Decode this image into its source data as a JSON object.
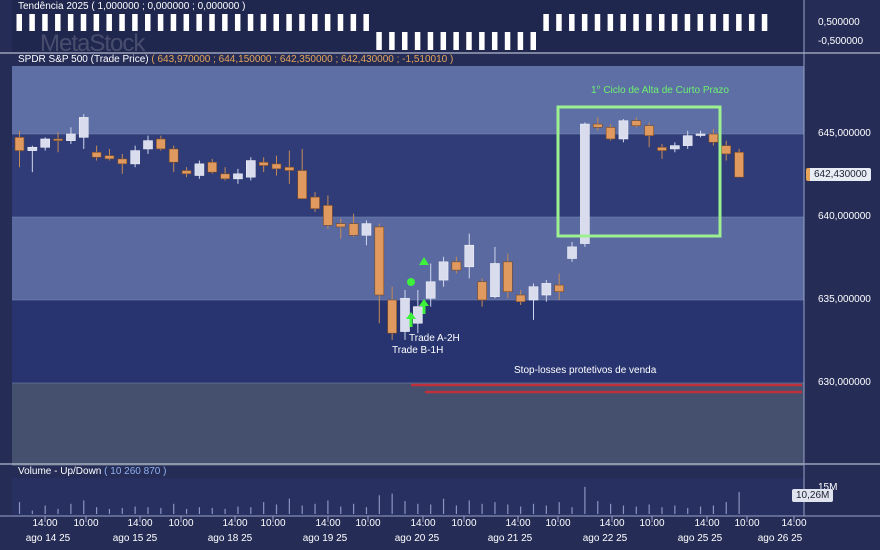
{
  "trend_panel": {
    "title": "Tendência 2025",
    "values": "( 1,000000 ; 0,000000 ; 0,000000 )",
    "axis_ticks": [
      "0,500000",
      "-0,500000"
    ],
    "bars": [
      1,
      1,
      1,
      1,
      1,
      1,
      1,
      1,
      1,
      1,
      1,
      1,
      1,
      1,
      1,
      1,
      1,
      1,
      1,
      1,
      1,
      1,
      1,
      1,
      1,
      1,
      1,
      1,
      -1,
      -1,
      -1,
      -1,
      -1,
      -1,
      -1,
      -1,
      -1,
      -1,
      -1,
      -1,
      -1,
      1,
      1,
      1,
      1,
      1,
      1,
      1,
      1,
      1,
      1,
      1,
      1,
      1,
      1,
      1,
      1,
      1,
      1
    ],
    "watermark": "MetaStock"
  },
  "price_panel": {
    "title": "SPDR S&P 500 (Trade Price)",
    "values": "( 643,970000 ; 644,150000 ; 642,350000 ; 642,430000 ; -1,510010 )",
    "current_price_label": "642,430000",
    "axis_ticks": [
      "645,000000",
      "640,000000",
      "635,000000",
      "630,000000"
    ]
  },
  "annotations": {
    "cycle": "1° Ciclo de Alta de Curto Prazo",
    "trade_a": "Trade A-2H",
    "trade_b": "Trade B-1H",
    "stop_losses": "Stop-losses protetivos de venda"
  },
  "volume_panel": {
    "title": "Volume - Up/Down",
    "count": "( 10 260 870 )",
    "axis_tick": "15M",
    "current_label": "10,26M"
  },
  "x_axis": {
    "time_labels": [
      "14:00",
      "10:00",
      "14:00",
      "10:00",
      "14:00",
      "10:00",
      "14:00",
      "10:00",
      "14:00",
      "10:00",
      "14:00",
      "10:00",
      "14:00",
      "10:00",
      "14:00",
      "10:00",
      "14:00"
    ],
    "date_labels": [
      "ago 14 25",
      "ago 15 25",
      "ago 18 25",
      "ago 19 25",
      "ago 20 25",
      "ago 21 25",
      "ago 22 25",
      "ago 25 25",
      "ago 26 25"
    ]
  },
  "colors": {
    "up": "#d8dcec",
    "down": "#e09a60",
    "cycle_box": "#9df08f",
    "stop_line": "#c0303a",
    "arrow": "#3cf03c"
  },
  "chart_data": {
    "type": "candlestick",
    "title": "SPDR S&P 500 (Trade Price)",
    "ylim": [
      625.0,
      649.5
    ],
    "ticks": [
      630,
      635,
      640,
      645
    ],
    "candles": [
      {
        "o": 644.8,
        "h": 645.2,
        "l": 643.0,
        "c": 644.0
      },
      {
        "o": 644.0,
        "h": 644.3,
        "l": 642.7,
        "c": 644.2
      },
      {
        "o": 644.2,
        "h": 644.8,
        "l": 644.0,
        "c": 644.7
      },
      {
        "o": 644.7,
        "h": 645.1,
        "l": 643.9,
        "c": 644.6
      },
      {
        "o": 644.6,
        "h": 645.4,
        "l": 644.4,
        "c": 645.0
      },
      {
        "o": 644.8,
        "h": 646.2,
        "l": 644.1,
        "c": 646.0
      },
      {
        "o": 643.9,
        "h": 644.3,
        "l": 643.4,
        "c": 643.6
      },
      {
        "o": 643.7,
        "h": 644.1,
        "l": 643.4,
        "c": 643.5
      },
      {
        "o": 643.5,
        "h": 643.8,
        "l": 642.6,
        "c": 643.2
      },
      {
        "o": 643.2,
        "h": 644.3,
        "l": 643.0,
        "c": 644.0
      },
      {
        "o": 644.1,
        "h": 644.9,
        "l": 643.8,
        "c": 644.6
      },
      {
        "o": 644.7,
        "h": 644.9,
        "l": 644.0,
        "c": 644.1
      },
      {
        "o": 644.1,
        "h": 644.3,
        "l": 642.7,
        "c": 643.3
      },
      {
        "o": 642.8,
        "h": 643.0,
        "l": 642.4,
        "c": 642.6
      },
      {
        "o": 642.5,
        "h": 643.4,
        "l": 642.3,
        "c": 643.2
      },
      {
        "o": 643.3,
        "h": 643.5,
        "l": 642.6,
        "c": 642.7
      },
      {
        "o": 642.6,
        "h": 643.0,
        "l": 642.2,
        "c": 642.3
      },
      {
        "o": 642.3,
        "h": 642.9,
        "l": 642.0,
        "c": 642.6
      },
      {
        "o": 642.4,
        "h": 643.6,
        "l": 642.2,
        "c": 643.4
      },
      {
        "o": 643.3,
        "h": 643.6,
        "l": 642.7,
        "c": 643.1
      },
      {
        "o": 643.2,
        "h": 643.7,
        "l": 642.5,
        "c": 642.9
      },
      {
        "o": 643.0,
        "h": 644.0,
        "l": 642.0,
        "c": 642.8
      },
      {
        "o": 642.8,
        "h": 644.1,
        "l": 641.2,
        "c": 641.1
      },
      {
        "o": 641.2,
        "h": 641.5,
        "l": 640.3,
        "c": 640.5
      },
      {
        "o": 640.7,
        "h": 641.3,
        "l": 639.3,
        "c": 639.5
      },
      {
        "o": 639.6,
        "h": 639.9,
        "l": 638.7,
        "c": 639.4
      },
      {
        "o": 639.6,
        "h": 640.2,
        "l": 638.8,
        "c": 638.9
      },
      {
        "o": 638.9,
        "h": 639.8,
        "l": 638.3,
        "c": 639.6
      },
      {
        "o": 639.4,
        "h": 639.6,
        "l": 633.6,
        "c": 635.3
      },
      {
        "o": 635.0,
        "h": 635.8,
        "l": 632.6,
        "c": 633.0
      },
      {
        "o": 633.1,
        "h": 635.6,
        "l": 632.6,
        "c": 635.1
      },
      {
        "o": 633.6,
        "h": 635.6,
        "l": 633.0,
        "c": 634.6
      },
      {
        "o": 635.1,
        "h": 637.2,
        "l": 634.6,
        "c": 636.1
      },
      {
        "o": 636.2,
        "h": 637.6,
        "l": 635.8,
        "c": 637.3
      },
      {
        "o": 637.3,
        "h": 637.6,
        "l": 636.6,
        "c": 636.8
      },
      {
        "o": 637.0,
        "h": 639.0,
        "l": 636.3,
        "c": 638.3
      },
      {
        "o": 636.1,
        "h": 636.3,
        "l": 634.6,
        "c": 635.0
      },
      {
        "o": 635.2,
        "h": 638.2,
        "l": 635.1,
        "c": 637.2
      },
      {
        "o": 637.3,
        "h": 637.8,
        "l": 635.1,
        "c": 635.5
      },
      {
        "o": 635.3,
        "h": 635.6,
        "l": 634.7,
        "c": 634.9
      },
      {
        "o": 635.0,
        "h": 636.0,
        "l": 633.8,
        "c": 635.8
      },
      {
        "o": 635.3,
        "h": 636.2,
        "l": 634.9,
        "c": 636.0
      },
      {
        "o": 635.9,
        "h": 636.6,
        "l": 635.0,
        "c": 635.5
      },
      {
        "o": 637.5,
        "h": 638.5,
        "l": 637.3,
        "c": 638.2
      },
      {
        "o": 638.4,
        "h": 645.7,
        "l": 638.2,
        "c": 645.6
      },
      {
        "o": 645.6,
        "h": 646.0,
        "l": 645.2,
        "c": 645.4
      },
      {
        "o": 645.4,
        "h": 645.6,
        "l": 644.6,
        "c": 644.7
      },
      {
        "o": 644.7,
        "h": 645.9,
        "l": 644.5,
        "c": 645.8
      },
      {
        "o": 645.8,
        "h": 646.0,
        "l": 645.4,
        "c": 645.5
      },
      {
        "o": 645.5,
        "h": 645.7,
        "l": 644.2,
        "c": 644.9
      },
      {
        "o": 644.2,
        "h": 644.4,
        "l": 643.5,
        "c": 644.0
      },
      {
        "o": 644.1,
        "h": 644.5,
        "l": 643.9,
        "c": 644.3
      },
      {
        "o": 644.3,
        "h": 645.2,
        "l": 644.1,
        "c": 644.9
      },
      {
        "o": 645.0,
        "h": 645.2,
        "l": 644.8,
        "c": 645.0
      },
      {
        "o": 645.0,
        "h": 645.3,
        "l": 644.3,
        "c": 644.5
      },
      {
        "o": 644.3,
        "h": 644.6,
        "l": 643.4,
        "c": 643.8
      },
      {
        "o": 643.9,
        "h": 644.1,
        "l": 642.4,
        "c": 642.4
      }
    ],
    "volume": [
      0.35,
      0.1,
      0.25,
      0.15,
      0.3,
      0.4,
      0.2,
      0.15,
      0.18,
      0.22,
      0.2,
      0.18,
      0.3,
      0.15,
      0.2,
      0.18,
      0.15,
      0.22,
      0.2,
      0.35,
      0.28,
      0.45,
      0.25,
      0.3,
      0.4,
      0.22,
      0.3,
      0.2,
      0.55,
      0.6,
      0.38,
      0.3,
      0.28,
      0.45,
      0.25,
      0.4,
      0.3,
      0.35,
      0.28,
      0.22,
      0.3,
      0.25,
      0.35,
      0.2,
      0.8,
      0.38,
      0.3,
      0.25,
      0.22,
      0.28,
      0.2,
      0.25,
      0.18,
      0.22,
      0.25,
      0.35,
      0.65
    ]
  }
}
